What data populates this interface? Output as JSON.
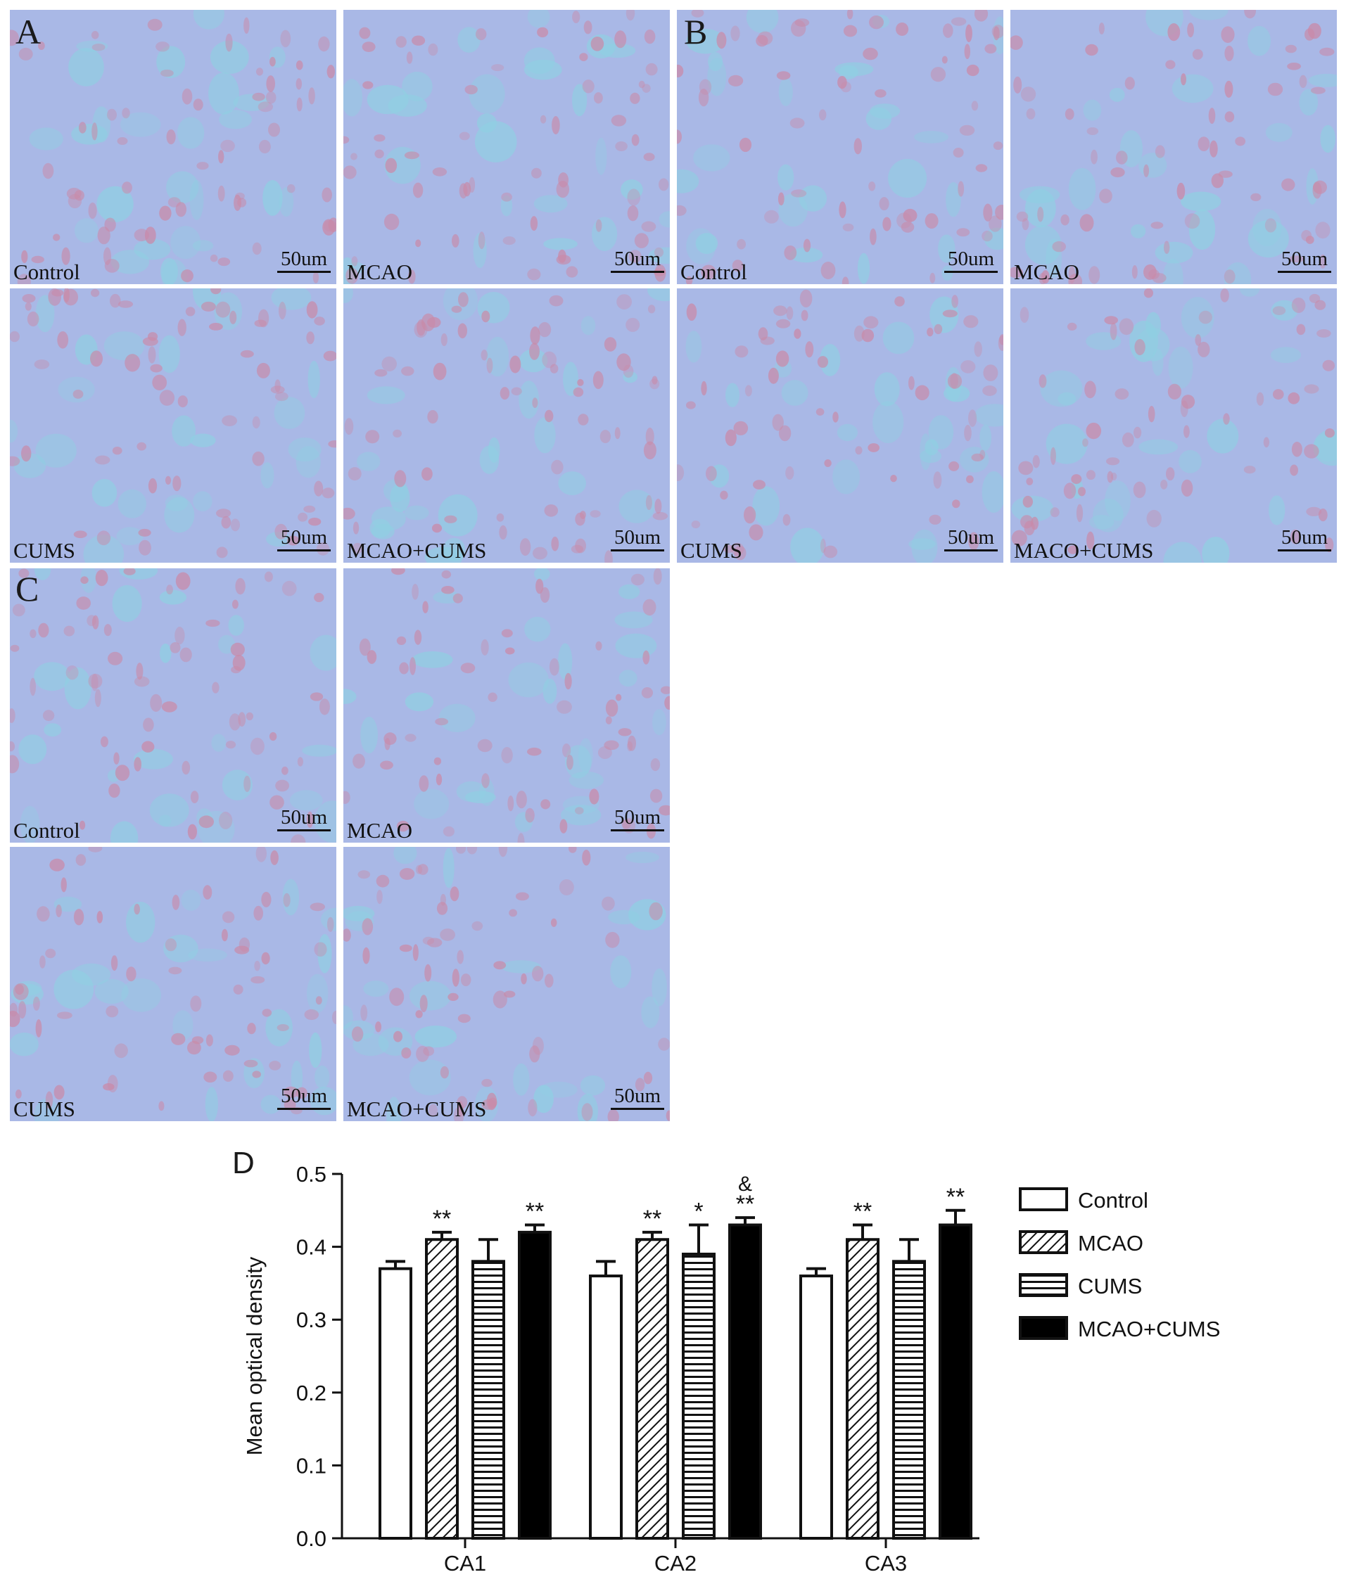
{
  "panels": [
    {
      "letter": "A",
      "tiles": [
        {
          "label": "Control",
          "scale": "50um"
        },
        {
          "label": "MCAO",
          "scale": "50um"
        },
        {
          "label": "CUMS",
          "scale": "50um"
        },
        {
          "label": "MCAO+CUMS",
          "scale": "50um"
        }
      ]
    },
    {
      "letter": "B",
      "tiles": [
        {
          "label": "Control",
          "scale": "50um"
        },
        {
          "label": "MCAO",
          "scale": "50um"
        },
        {
          "label": "CUMS",
          "scale": "50um"
        },
        {
          "label": "MACO+CUMS",
          "scale": "50um"
        }
      ]
    },
    {
      "letter": "C",
      "tiles": [
        {
          "label": "Control",
          "scale": "50um"
        },
        {
          "label": "MCAO",
          "scale": "50um"
        },
        {
          "label": "CUMS",
          "scale": "50um"
        },
        {
          "label": "MCAO+CUMS",
          "scale": "50um"
        }
      ]
    }
  ],
  "colors": {
    "tissue_background": "#a9b8e6",
    "stain_spot": "#c98aa8",
    "vessel_spot": "#8fd0e2"
  },
  "chart_panel_letter": "D",
  "chart_data": {
    "type": "bar",
    "categories": [
      "CA1",
      "CA2",
      "CA3"
    ],
    "ylabel": "Mean optical density",
    "ylim": [
      0.0,
      0.5
    ],
    "yticks": [
      "0.0",
      "0.1",
      "0.2",
      "0.3",
      "0.4",
      "0.5"
    ],
    "series": [
      {
        "name": "Control",
        "fill": "white",
        "values": [
          0.37,
          0.36,
          0.36
        ],
        "errors": [
          0.01,
          0.02,
          0.01
        ],
        "annotations": [
          "",
          "",
          ""
        ]
      },
      {
        "name": "MCAO",
        "fill": "diagonal-hatch",
        "values": [
          0.41,
          0.41,
          0.41
        ],
        "errors": [
          0.01,
          0.01,
          0.02
        ],
        "annotations": [
          "**",
          "**",
          "**"
        ]
      },
      {
        "name": "CUMS",
        "fill": "horizontal-hatch",
        "values": [
          0.38,
          0.39,
          0.38
        ],
        "errors": [
          0.03,
          0.04,
          0.03
        ],
        "annotations": [
          "",
          "*",
          ""
        ]
      },
      {
        "name": "MCAO+CUMS",
        "fill": "black",
        "values": [
          0.42,
          0.43,
          0.43
        ],
        "errors": [
          0.01,
          0.01,
          0.02
        ],
        "annotations": [
          "**",
          "**",
          "**"
        ]
      }
    ],
    "extra_annotation": {
      "category": "CA2",
      "series": "MCAO+CUMS",
      "text": "&"
    },
    "legend_placement": "right"
  }
}
